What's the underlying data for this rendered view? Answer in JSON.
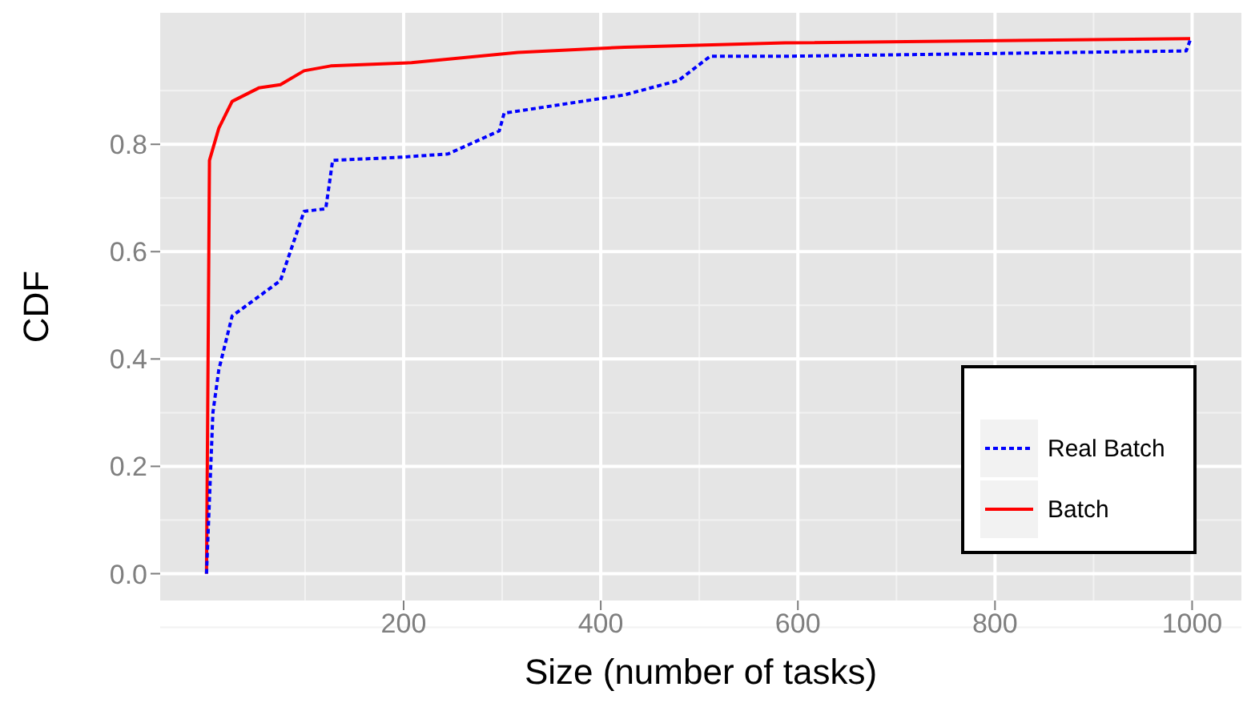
{
  "chart_data": {
    "type": "line",
    "xlabel": "Size (number of tasks)",
    "ylabel": "CDF",
    "xlim": [
      -47,
      1050
    ],
    "ylim": [
      -0.05,
      1.045
    ],
    "xticks": [
      200,
      400,
      600,
      800,
      1000
    ],
    "yticks": [
      {
        "value": 0,
        "label": "0.0"
      },
      0.2,
      0.4,
      0.6,
      0.8
    ],
    "grid": true,
    "legend": "bottom right",
    "series": [
      {
        "name": "Real Batch",
        "color": "#0000ff",
        "line_style": "dashed",
        "x": [
          0,
          6.5,
          12.5,
          26,
          75,
          99,
          121,
          128,
          197,
          245,
          297,
          302,
          424,
          479,
          511,
          587,
          994,
          998
        ],
        "values": [
          0,
          0.3,
          0.38,
          0.48,
          0.546,
          0.675,
          0.68,
          0.77,
          0.776,
          0.782,
          0.825,
          0.858,
          0.892,
          0.919,
          0.964,
          0.964,
          0.974,
          0.994
        ]
      },
      {
        "name": "Batch",
        "color": "#ff0000",
        "line_style": "solid",
        "x": [
          0,
          2,
          3,
          12.5,
          26,
          53,
          75,
          99,
          126,
          208,
          316,
          424,
          587,
          998
        ],
        "values": [
          0,
          0.5,
          0.77,
          0.83,
          0.88,
          0.905,
          0.911,
          0.937,
          0.946,
          0.952,
          0.971,
          0.981,
          0.989,
          0.997
        ]
      }
    ]
  }
}
